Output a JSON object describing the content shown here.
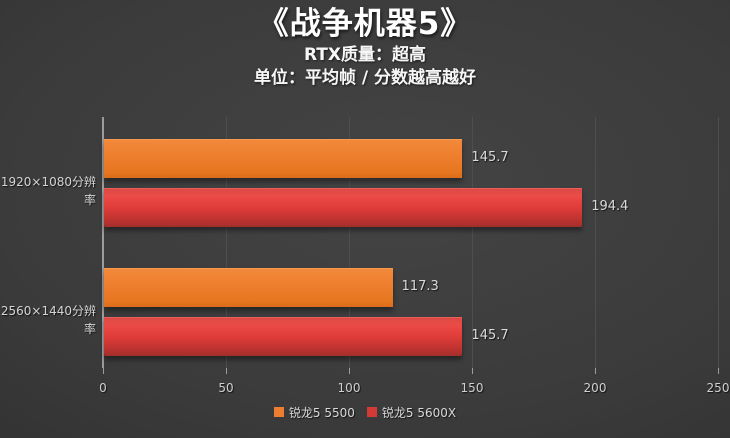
{
  "header": {
    "title": "《战争机器5》",
    "subtitle_quality": "RTX质量：超高",
    "subtitle_unit": "单位：平均帧 / 分数越高越好"
  },
  "chart_data": {
    "type": "bar",
    "orientation": "horizontal",
    "title": "《战争机器5》",
    "subtitles": [
      "RTX质量：超高",
      "单位：平均帧 / 分数越高越好"
    ],
    "categories": [
      "1920×1080分辨率",
      "2560×1440分辨率"
    ],
    "series": [
      {
        "name": "锐龙5 5500",
        "color": "#ed7d31",
        "values": [
          145.7,
          117.3
        ]
      },
      {
        "name": "锐龙5 5600X",
        "color": "#d23a36",
        "values": [
          194.4,
          145.7
        ]
      }
    ],
    "value_labels": [
      "145.7",
      "194.4",
      "117.3",
      "145.7"
    ],
    "xlim": [
      0,
      250
    ],
    "xticks": [
      0,
      50,
      100,
      150,
      200,
      250
    ],
    "grid": true,
    "legend_position": "bottom"
  },
  "colors": {
    "background_center": "#444444",
    "background_edge": "#242424",
    "bar_orange": "#ed7d31",
    "bar_red": "#d23a36",
    "title_text": "#ffffff",
    "label_text": "#d4d4d4",
    "gridline": "#4e4e4e",
    "axis_line": "#9c9c9c"
  }
}
